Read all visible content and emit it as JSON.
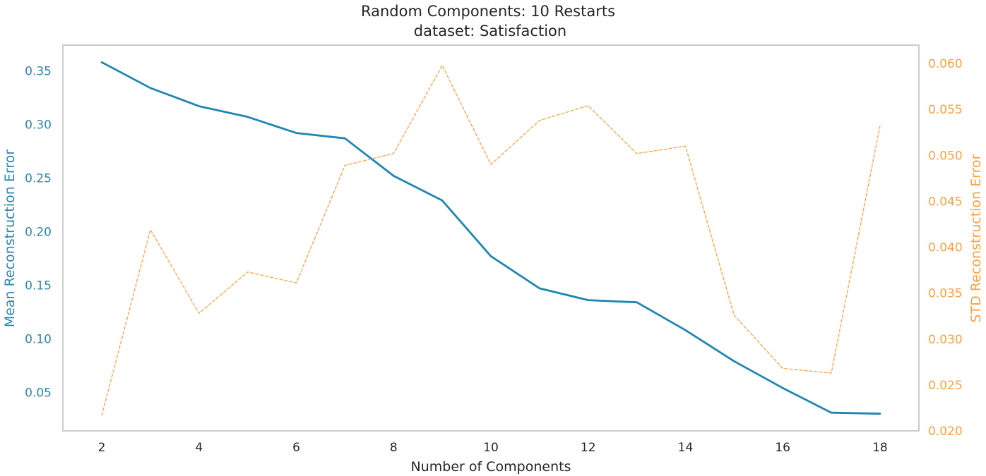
{
  "chart_data": {
    "type": "line",
    "title": "Random Components: 10 Restarts",
    "subtitle": "dataset: Satisfaction",
    "xlabel": "Number of Components",
    "ylabel_left": "Mean Reconstruction Error",
    "ylabel_right": "STD Reconstruction Error",
    "x": [
      2,
      3,
      4,
      5,
      6,
      7,
      8,
      9,
      10,
      11,
      12,
      13,
      14,
      15,
      16,
      17,
      18
    ],
    "xlim": [
      1.2,
      18.8
    ],
    "x_ticks": [
      "2",
      "4",
      "6",
      "8",
      "10",
      "12",
      "14",
      "16",
      "18"
    ],
    "series": [
      {
        "name": "Mean Reconstruction Error",
        "axis": "left",
        "style": "solid",
        "color": "#1f86b4",
        "values": [
          0.358,
          0.334,
          0.317,
          0.307,
          0.292,
          0.287,
          0.252,
          0.229,
          0.177,
          0.147,
          0.136,
          0.134,
          0.108,
          0.079,
          0.054,
          0.031,
          0.03
        ]
      },
      {
        "name": "STD Reconstruction Error",
        "axis": "right",
        "style": "dashed",
        "color": "#ffa64d",
        "values": [
          0.0217,
          0.0419,
          0.0328,
          0.0373,
          0.0361,
          0.0489,
          0.0502,
          0.0598,
          0.049,
          0.0538,
          0.0554,
          0.0502,
          0.051,
          0.0326,
          0.0268,
          0.0263,
          0.0532
        ]
      }
    ],
    "ylim_left": [
      0.014,
      0.374
    ],
    "ylim_right": [
      0.02,
      0.062
    ],
    "y_ticks_left": [
      "0.05",
      "0.10",
      "0.15",
      "0.20",
      "0.25",
      "0.30",
      "0.35"
    ],
    "y_ticks_right": [
      "0.020",
      "0.025",
      "0.030",
      "0.035",
      "0.040",
      "0.045",
      "0.050",
      "0.055",
      "0.060"
    ],
    "grid": false,
    "colors": {
      "left_axis": "#2f86b4",
      "right_axis": "#ff9f43",
      "frame": "#cccccc",
      "text": "#262626"
    }
  }
}
